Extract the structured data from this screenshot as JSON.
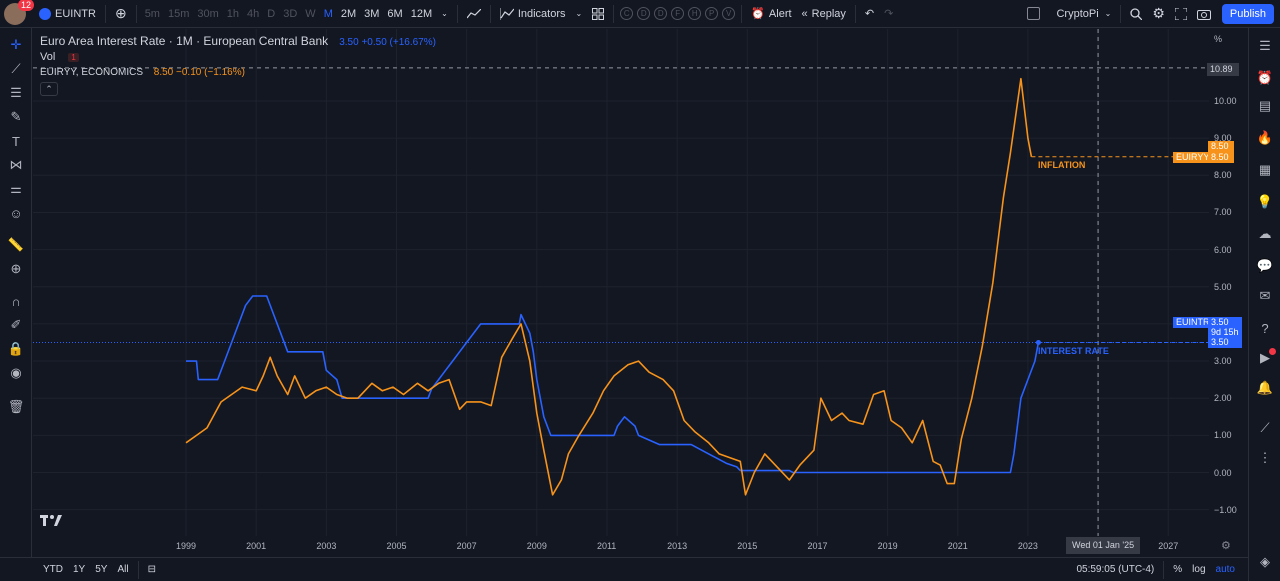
{
  "header": {
    "notif_count": "12",
    "symbol": "EUINTR",
    "timeframes": [
      "5m",
      "15m",
      "30m",
      "1h",
      "4h",
      "D",
      "3D",
      "W",
      "M",
      "2M",
      "3M",
      "6M",
      "12M"
    ],
    "active_timeframe": "M",
    "indicators_label": "Indicators",
    "indicator_letters": [
      "C",
      "D",
      "D",
      "F",
      "H",
      "P",
      "V"
    ],
    "alert_label": "Alert",
    "replay_label": "Replay",
    "layout_name": "CryptoPi",
    "publish_label": "Publish"
  },
  "legend": {
    "title": "Euro Area Interest Rate · 1M · European Central Bank",
    "title_values": "3.50 +0.50 (+16.67%)",
    "vol_label": "Vol",
    "vol_badge": "1",
    "study_label": "EUIRYY, ECONOMICS",
    "study_values": "8.50 −0.10 (−1.16%)"
  },
  "price_axis": {
    "unit": "%",
    "ticks": [
      "10.00",
      "9.00",
      "8.00",
      "7.00",
      "6.00",
      "5.00",
      "4.00",
      "3.00",
      "2.00",
      "1.00",
      "0.00",
      "−1.00"
    ],
    "crosshair_value": "10.89",
    "inflation_tags": [
      "8.50",
      "8.50"
    ],
    "inflation_symbol": "EUIRYY",
    "rate_symbol": "EUINTR",
    "rate_tags": [
      "3.50",
      "9d 15h",
      "3.50"
    ]
  },
  "annotations": {
    "inflation": "INFLATION",
    "interest_rate": "INTEREST RATE"
  },
  "time_axis": {
    "ticks": [
      "1999",
      "2001",
      "2003",
      "2005",
      "2007",
      "2009",
      "2011",
      "2013",
      "2015",
      "2017",
      "2019",
      "2021",
      "2023",
      "2027"
    ],
    "crosshair_date": "Wed 01 Jan '25"
  },
  "bottom": {
    "ranges": [
      "YTD",
      "1Y",
      "5Y",
      "All"
    ],
    "clock": "05:59:05 (UTC-4)",
    "percent": "%",
    "log": "log",
    "auto": "auto"
  },
  "colors": {
    "rate": "#2962ff",
    "inflation": "#f7931a",
    "background": "#131722"
  },
  "chart_data": {
    "type": "line",
    "ylim": [
      -1.3,
      11.0
    ],
    "xlim": [
      1995.5,
      2028.5
    ],
    "series": [
      {
        "name": "EUINTR",
        "points": [
          [
            1999.0,
            3.0
          ],
          [
            1999.3,
            3.0
          ],
          [
            1999.35,
            2.5
          ],
          [
            1999.9,
            2.5
          ],
          [
            2000.1,
            3.0
          ],
          [
            2000.3,
            3.5
          ],
          [
            2000.5,
            4.0
          ],
          [
            2000.7,
            4.5
          ],
          [
            2000.9,
            4.75
          ],
          [
            2001.3,
            4.75
          ],
          [
            2001.5,
            4.25
          ],
          [
            2001.7,
            3.75
          ],
          [
            2001.9,
            3.25
          ],
          [
            2002.9,
            3.25
          ],
          [
            2003.0,
            2.75
          ],
          [
            2003.3,
            2.5
          ],
          [
            2003.45,
            2.0
          ],
          [
            2005.9,
            2.0
          ],
          [
            2006.0,
            2.25
          ],
          [
            2006.2,
            2.5
          ],
          [
            2006.4,
            2.75
          ],
          [
            2006.6,
            3.0
          ],
          [
            2006.8,
            3.25
          ],
          [
            2007.0,
            3.5
          ],
          [
            2007.4,
            4.0
          ],
          [
            2008.5,
            4.0
          ],
          [
            2008.55,
            4.25
          ],
          [
            2008.8,
            3.75
          ],
          [
            2008.9,
            3.25
          ],
          [
            2009.0,
            2.5
          ],
          [
            2009.2,
            1.5
          ],
          [
            2009.4,
            1.0
          ],
          [
            2011.2,
            1.0
          ],
          [
            2011.3,
            1.25
          ],
          [
            2011.5,
            1.5
          ],
          [
            2011.8,
            1.25
          ],
          [
            2011.9,
            1.0
          ],
          [
            2012.5,
            0.75
          ],
          [
            2013.4,
            0.75
          ],
          [
            2013.9,
            0.5
          ],
          [
            2014.4,
            0.25
          ],
          [
            2014.7,
            0.15
          ],
          [
            2014.8,
            0.05
          ],
          [
            2016.2,
            0.05
          ],
          [
            2016.3,
            0.0
          ],
          [
            2022.5,
            0.0
          ],
          [
            2022.6,
            0.5
          ],
          [
            2022.7,
            1.25
          ],
          [
            2022.8,
            2.0
          ],
          [
            2023.0,
            2.5
          ],
          [
            2023.2,
            3.0
          ],
          [
            2023.3,
            3.5
          ]
        ]
      },
      {
        "name": "EUIRYY",
        "points": [
          [
            1999.0,
            0.8
          ],
          [
            1999.3,
            1.0
          ],
          [
            1999.6,
            1.2
          ],
          [
            2000.0,
            1.9
          ],
          [
            2000.3,
            2.1
          ],
          [
            2000.6,
            2.3
          ],
          [
            2001.0,
            2.2
          ],
          [
            2001.2,
            2.6
          ],
          [
            2001.4,
            3.1
          ],
          [
            2001.6,
            2.6
          ],
          [
            2001.9,
            2.1
          ],
          [
            2002.1,
            2.6
          ],
          [
            2002.4,
            2.0
          ],
          [
            2002.7,
            2.2
          ],
          [
            2003.0,
            2.3
          ],
          [
            2003.3,
            2.1
          ],
          [
            2003.6,
            2.0
          ],
          [
            2003.9,
            2.0
          ],
          [
            2004.3,
            2.4
          ],
          [
            2004.6,
            2.2
          ],
          [
            2004.9,
            2.3
          ],
          [
            2005.2,
            2.1
          ],
          [
            2005.6,
            2.4
          ],
          [
            2005.9,
            2.2
          ],
          [
            2006.2,
            2.4
          ],
          [
            2006.5,
            2.5
          ],
          [
            2006.8,
            1.7
          ],
          [
            2007.0,
            1.9
          ],
          [
            2007.4,
            1.9
          ],
          [
            2007.7,
            1.8
          ],
          [
            2008.0,
            3.1
          ],
          [
            2008.3,
            3.6
          ],
          [
            2008.55,
            4.0
          ],
          [
            2008.8,
            3.0
          ],
          [
            2009.0,
            1.6
          ],
          [
            2009.2,
            0.6
          ],
          [
            2009.45,
            -0.6
          ],
          [
            2009.7,
            -0.2
          ],
          [
            2009.9,
            0.5
          ],
          [
            2010.2,
            1.0
          ],
          [
            2010.6,
            1.6
          ],
          [
            2010.9,
            2.2
          ],
          [
            2011.2,
            2.6
          ],
          [
            2011.6,
            2.9
          ],
          [
            2011.9,
            3.0
          ],
          [
            2012.2,
            2.7
          ],
          [
            2012.6,
            2.5
          ],
          [
            2012.9,
            2.2
          ],
          [
            2013.2,
            1.4
          ],
          [
            2013.5,
            1.1
          ],
          [
            2013.9,
            0.8
          ],
          [
            2014.2,
            0.5
          ],
          [
            2014.5,
            0.4
          ],
          [
            2014.8,
            0.3
          ],
          [
            2014.95,
            -0.6
          ],
          [
            2015.2,
            0.0
          ],
          [
            2015.5,
            0.5
          ],
          [
            2015.8,
            0.2
          ],
          [
            2016.2,
            -0.2
          ],
          [
            2016.5,
            0.2
          ],
          [
            2016.9,
            0.6
          ],
          [
            2017.1,
            2.0
          ],
          [
            2017.4,
            1.4
          ],
          [
            2017.7,
            1.6
          ],
          [
            2017.9,
            1.4
          ],
          [
            2018.3,
            1.3
          ],
          [
            2018.6,
            2.1
          ],
          [
            2018.9,
            2.2
          ],
          [
            2019.1,
            1.4
          ],
          [
            2019.4,
            1.2
          ],
          [
            2019.7,
            0.8
          ],
          [
            2020.0,
            1.4
          ],
          [
            2020.3,
            0.3
          ],
          [
            2020.5,
            0.2
          ],
          [
            2020.7,
            -0.3
          ],
          [
            2020.9,
            -0.3
          ],
          [
            2021.1,
            0.9
          ],
          [
            2021.4,
            2.0
          ],
          [
            2021.7,
            3.4
          ],
          [
            2022.0,
            5.1
          ],
          [
            2022.3,
            7.4
          ],
          [
            2022.5,
            8.6
          ],
          [
            2022.8,
            10.6
          ],
          [
            2023.0,
            9.0
          ],
          [
            2023.1,
            8.5
          ]
        ]
      }
    ]
  }
}
